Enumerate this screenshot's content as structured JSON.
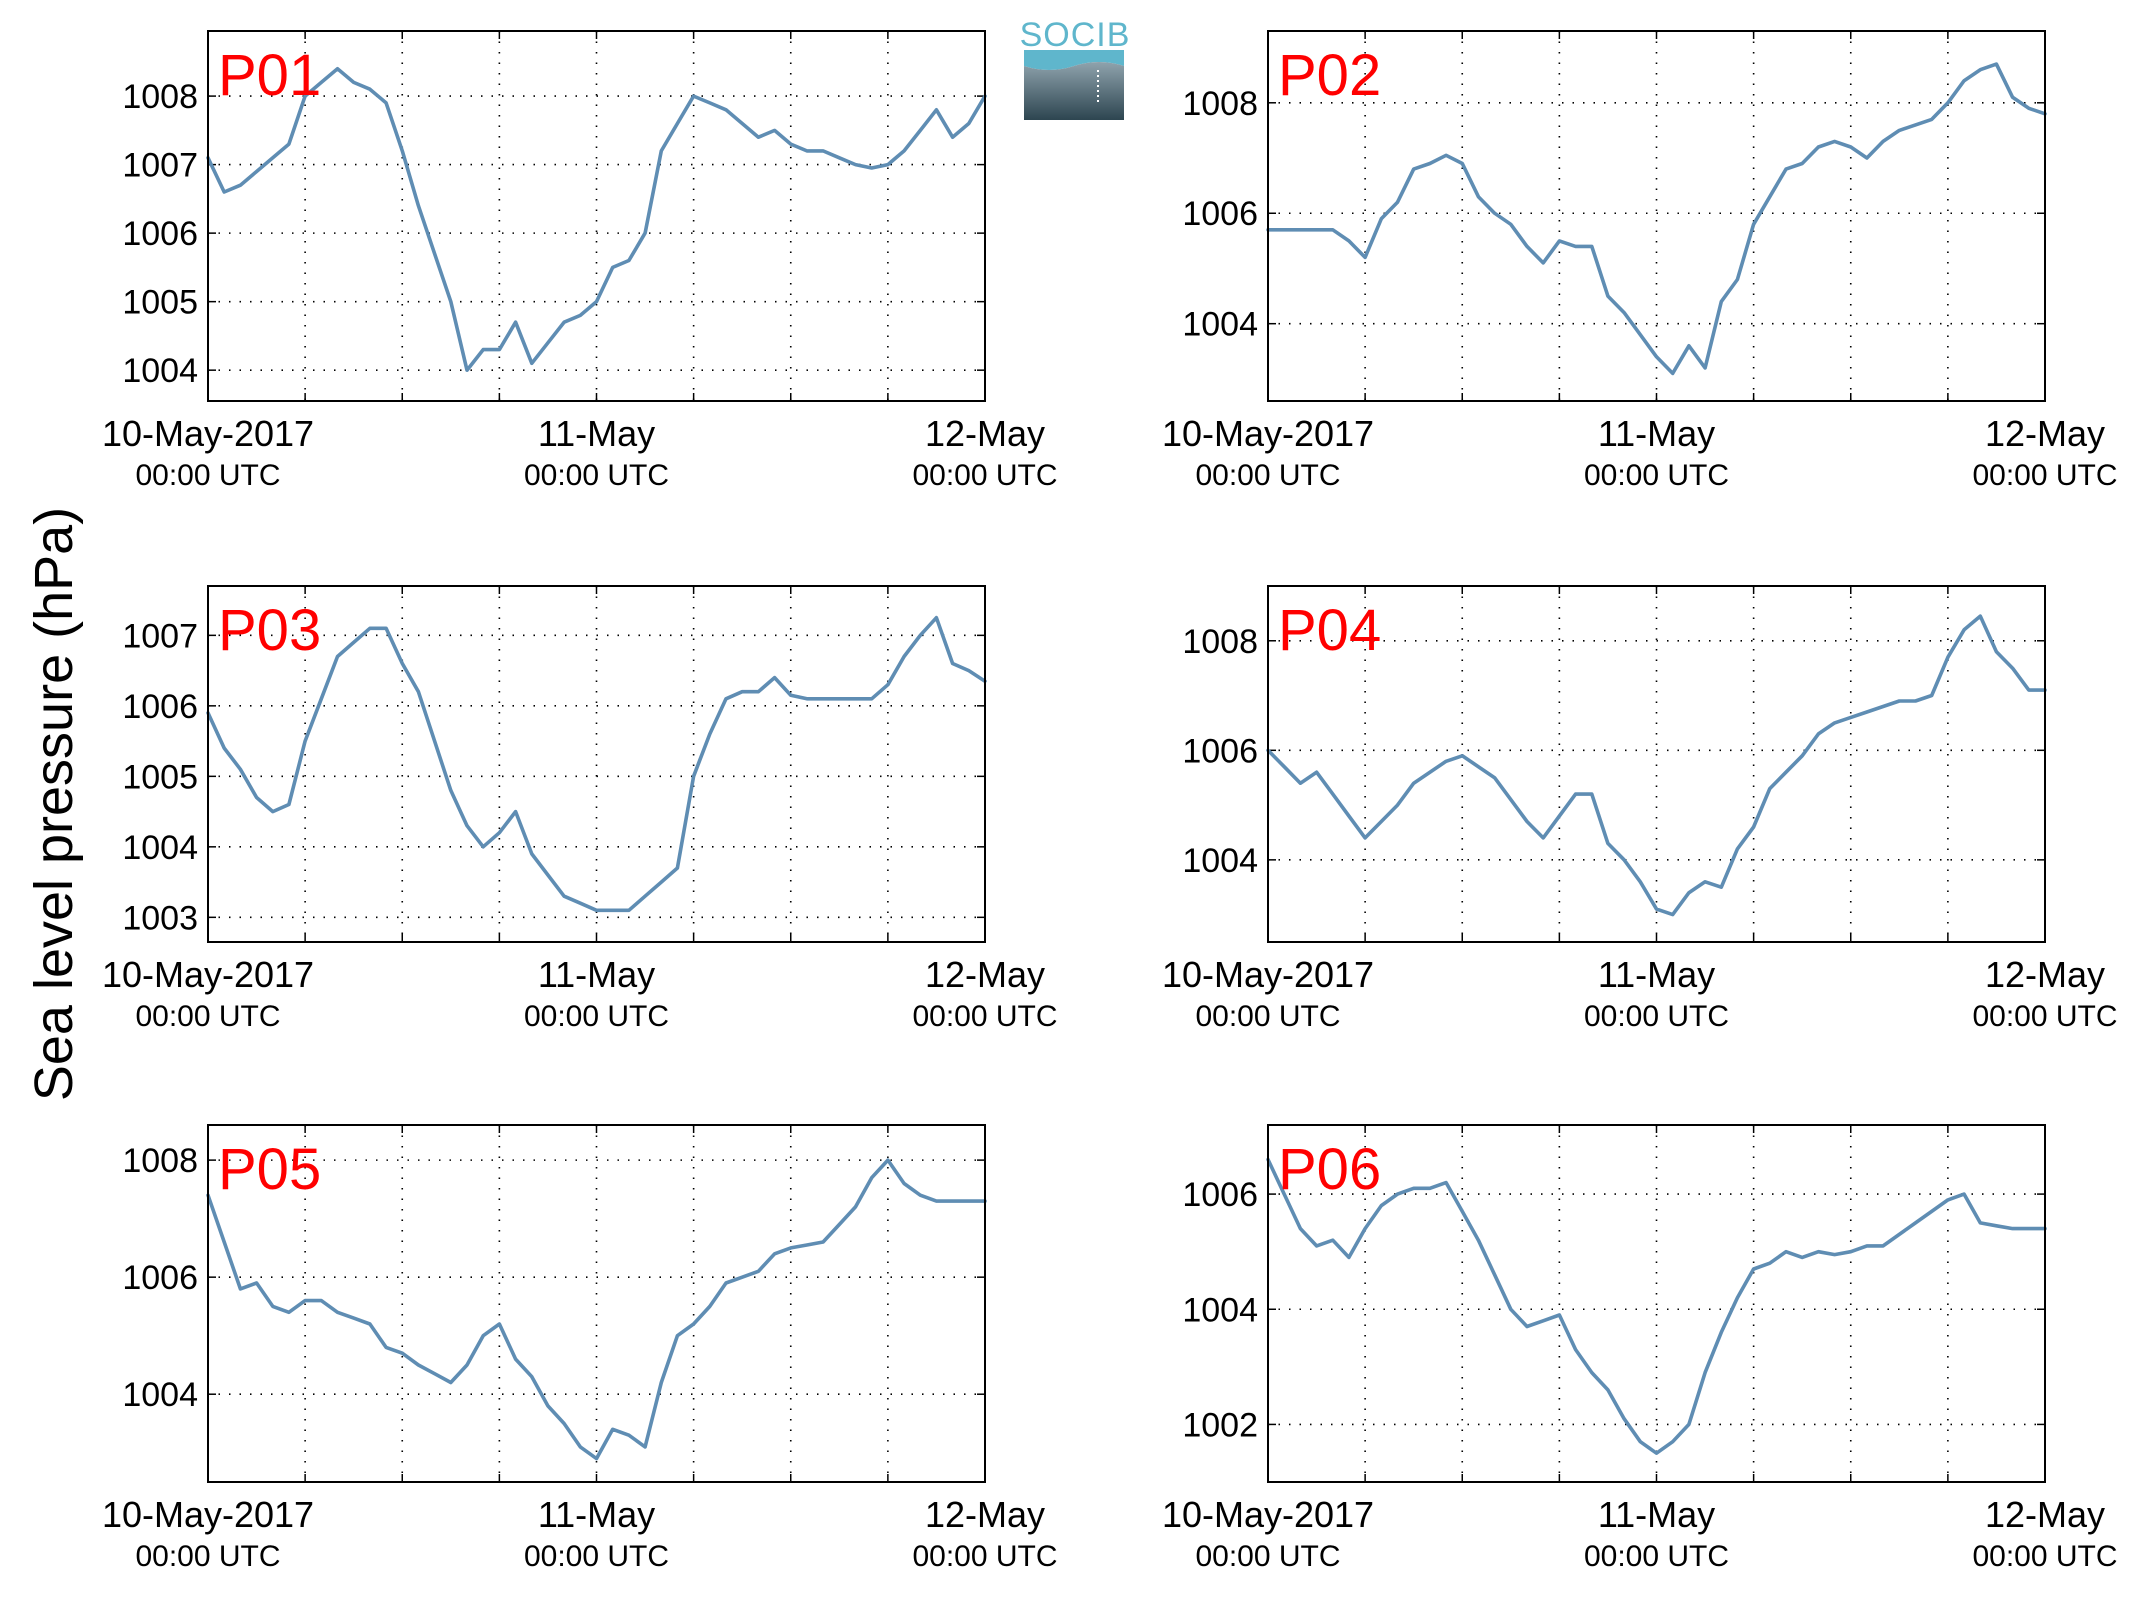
{
  "ylabel": "Sea level pressure (hPa)",
  "logo": {
    "text": "SOCIB"
  },
  "x_ticks": [
    {
      "date": "2017-05-10 00:00",
      "line1": "10-May-2017",
      "line2": "00:00 UTC"
    },
    {
      "date": "2017-05-11 00:00",
      "line1": "11-May",
      "line2": "00:00 UTC"
    },
    {
      "date": "2017-05-12 00:00",
      "line1": "12-May",
      "line2": "00:00 UTC"
    }
  ],
  "colors": {
    "line": "#5f8db3",
    "panel_label": "#ff0000",
    "logo": "#5fb6cc"
  },
  "chart_data": [
    {
      "type": "line",
      "name": "P01",
      "xlim": [
        "2017-05-10 00:00",
        "2017-05-12 00:00"
      ],
      "ylim": [
        1003.55,
        1008.95
      ],
      "yticks": [
        1004,
        1005,
        1006,
        1007,
        1008
      ],
      "grid": true,
      "x_hours": [
        0,
        1,
        2,
        3,
        4,
        5,
        6,
        7,
        8,
        9,
        10,
        11,
        12,
        13,
        14,
        15,
        16,
        17,
        18,
        19,
        20,
        21,
        22,
        23,
        24,
        25,
        26,
        27,
        28,
        29,
        30,
        31,
        32,
        33,
        34,
        35,
        36,
        37,
        38,
        39,
        40,
        41,
        42,
        43,
        44,
        45,
        46,
        47,
        48
      ],
      "values": [
        1007.1,
        1006.6,
        1006.7,
        1006.9,
        1007.1,
        1007.3,
        1008.0,
        1008.2,
        1008.4,
        1008.2,
        1008.1,
        1007.9,
        1007.2,
        1006.4,
        1005.7,
        1005.0,
        1004.0,
        1004.3,
        1004.3,
        1004.7,
        1004.1,
        1004.4,
        1004.7,
        1004.8,
        1005.0,
        1005.5,
        1005.6,
        1006.0,
        1007.2,
        1007.6,
        1008.0,
        1007.9,
        1007.8,
        1007.6,
        1007.4,
        1007.5,
        1007.3,
        1007.2,
        1007.2,
        1007.1,
        1007.0,
        1006.95,
        1007.0,
        1007.2,
        1007.5,
        1007.8,
        1007.4,
        1007.6,
        1008.0
      ]
    },
    {
      "type": "line",
      "name": "P02",
      "xlim": [
        "2017-05-10 00:00",
        "2017-05-12 00:00"
      ],
      "ylim": [
        1002.6,
        1009.3
      ],
      "yticks": [
        1004,
        1006,
        1008
      ],
      "grid": true,
      "x_hours": [
        0,
        1,
        2,
        3,
        4,
        5,
        6,
        7,
        8,
        9,
        10,
        11,
        12,
        13,
        14,
        15,
        16,
        17,
        18,
        19,
        20,
        21,
        22,
        23,
        24,
        25,
        26,
        27,
        28,
        29,
        30,
        31,
        32,
        33,
        34,
        35,
        36,
        37,
        38,
        39,
        40,
        41,
        42,
        43,
        44,
        45,
        46,
        47,
        48
      ],
      "values": [
        1005.7,
        1005.7,
        1005.7,
        1005.7,
        1005.7,
        1005.5,
        1005.2,
        1005.9,
        1006.2,
        1006.8,
        1006.9,
        1007.05,
        1006.9,
        1006.3,
        1006.0,
        1005.8,
        1005.4,
        1005.1,
        1005.5,
        1005.4,
        1005.4,
        1004.5,
        1004.2,
        1003.8,
        1003.4,
        1003.1,
        1003.6,
        1003.2,
        1004.4,
        1004.8,
        1005.8,
        1006.3,
        1006.8,
        1006.9,
        1007.2,
        1007.3,
        1007.2,
        1007.0,
        1007.3,
        1007.5,
        1007.6,
        1007.7,
        1008.0,
        1008.4,
        1008.6,
        1008.7,
        1008.1,
        1007.9,
        1007.8
      ]
    },
    {
      "type": "line",
      "name": "P03",
      "xlim": [
        "2017-05-10 00:00",
        "2017-05-12 00:00"
      ],
      "ylim": [
        1002.65,
        1007.7
      ],
      "yticks": [
        1003,
        1004,
        1005,
        1006,
        1007
      ],
      "grid": true,
      "x_hours": [
        0,
        1,
        2,
        3,
        4,
        5,
        6,
        7,
        8,
        9,
        10,
        11,
        12,
        13,
        14,
        15,
        16,
        17,
        18,
        19,
        20,
        21,
        22,
        23,
        24,
        25,
        26,
        27,
        28,
        29,
        30,
        31,
        32,
        33,
        34,
        35,
        36,
        37,
        38,
        39,
        40,
        41,
        42,
        43,
        44,
        45,
        46,
        47,
        48
      ],
      "values": [
        1005.9,
        1005.4,
        1005.1,
        1004.7,
        1004.5,
        1004.6,
        1005.5,
        1006.1,
        1006.7,
        1006.9,
        1007.1,
        1007.1,
        1006.6,
        1006.2,
        1005.5,
        1004.8,
        1004.3,
        1004.0,
        1004.2,
        1004.5,
        1003.9,
        1003.6,
        1003.3,
        1003.2,
        1003.1,
        1003.1,
        1003.1,
        1003.3,
        1003.5,
        1003.7,
        1005.0,
        1005.6,
        1006.1,
        1006.2,
        1006.2,
        1006.4,
        1006.15,
        1006.1,
        1006.1,
        1006.1,
        1006.1,
        1006.1,
        1006.3,
        1006.7,
        1007.0,
        1007.25,
        1006.6,
        1006.5,
        1006.35
      ]
    },
    {
      "type": "line",
      "name": "P04",
      "xlim": [
        "2017-05-10 00:00",
        "2017-05-12 00:00"
      ],
      "ylim": [
        1002.5,
        1009.0
      ],
      "yticks": [
        1004,
        1006,
        1008
      ],
      "grid": true,
      "x_hours": [
        0,
        1,
        2,
        3,
        4,
        5,
        6,
        7,
        8,
        9,
        10,
        11,
        12,
        13,
        14,
        15,
        16,
        17,
        18,
        19,
        20,
        21,
        22,
        23,
        24,
        25,
        26,
        27,
        28,
        29,
        30,
        31,
        32,
        33,
        34,
        35,
        36,
        37,
        38,
        39,
        40,
        41,
        42,
        43,
        44,
        45,
        46,
        47,
        48
      ],
      "values": [
        1006.0,
        1005.7,
        1005.4,
        1005.6,
        1005.2,
        1004.8,
        1004.4,
        1004.7,
        1005.0,
        1005.4,
        1005.6,
        1005.8,
        1005.9,
        1005.7,
        1005.5,
        1005.1,
        1004.7,
        1004.4,
        1004.8,
        1005.2,
        1005.2,
        1004.3,
        1004.0,
        1003.6,
        1003.1,
        1003.0,
        1003.4,
        1003.6,
        1003.5,
        1004.2,
        1004.6,
        1005.3,
        1005.6,
        1005.9,
        1006.3,
        1006.5,
        1006.6,
        1006.7,
        1006.8,
        1006.9,
        1006.9,
        1007.0,
        1007.7,
        1008.2,
        1008.45,
        1007.8,
        1007.5,
        1007.1,
        1007.1
      ]
    },
    {
      "type": "line",
      "name": "P05",
      "xlim": [
        "2017-05-10 00:00",
        "2017-05-12 00:00"
      ],
      "ylim": [
        1002.5,
        1008.6
      ],
      "yticks": [
        1004,
        1006,
        1008
      ],
      "grid": true,
      "x_hours": [
        0,
        1,
        2,
        3,
        4,
        5,
        6,
        7,
        8,
        9,
        10,
        11,
        12,
        13,
        14,
        15,
        16,
        17,
        18,
        19,
        20,
        21,
        22,
        23,
        24,
        25,
        26,
        27,
        28,
        29,
        30,
        31,
        32,
        33,
        34,
        35,
        36,
        37,
        38,
        39,
        40,
        41,
        42,
        43,
        44,
        45,
        46,
        47,
        48
      ],
      "values": [
        1007.4,
        1006.6,
        1005.8,
        1005.9,
        1005.5,
        1005.4,
        1005.6,
        1005.6,
        1005.4,
        1005.3,
        1005.2,
        1004.8,
        1004.7,
        1004.5,
        1004.35,
        1004.2,
        1004.5,
        1005.0,
        1005.2,
        1004.6,
        1004.3,
        1003.8,
        1003.5,
        1003.1,
        1002.9,
        1003.4,
        1003.3,
        1003.1,
        1004.2,
        1005.0,
        1005.2,
        1005.5,
        1005.9,
        1006.0,
        1006.1,
        1006.4,
        1006.5,
        1006.55,
        1006.6,
        1006.9,
        1007.2,
        1007.7,
        1008.0,
        1007.6,
        1007.4,
        1007.3,
        1007.3,
        1007.3,
        1007.3
      ]
    },
    {
      "type": "line",
      "name": "P06",
      "xlim": [
        "2017-05-10 00:00",
        "2017-05-12 00:00"
      ],
      "ylim": [
        1001.0,
        1007.2
      ],
      "yticks": [
        1002,
        1004,
        1006
      ],
      "grid": true,
      "x_hours": [
        0,
        1,
        2,
        3,
        4,
        5,
        6,
        7,
        8,
        9,
        10,
        11,
        12,
        13,
        14,
        15,
        16,
        17,
        18,
        19,
        20,
        21,
        22,
        23,
        24,
        25,
        26,
        27,
        28,
        29,
        30,
        31,
        32,
        33,
        34,
        35,
        36,
        37,
        38,
        39,
        40,
        41,
        42,
        43,
        44,
        45,
        46,
        47,
        48
      ],
      "values": [
        1006.6,
        1006.0,
        1005.4,
        1005.1,
        1005.2,
        1004.9,
        1005.4,
        1005.8,
        1006.0,
        1006.1,
        1006.1,
        1006.2,
        1005.7,
        1005.2,
        1004.6,
        1004.0,
        1003.7,
        1003.8,
        1003.9,
        1003.3,
        1002.9,
        1002.6,
        1002.1,
        1001.7,
        1001.5,
        1001.7,
        1002.0,
        1002.9,
        1003.6,
        1004.2,
        1004.7,
        1004.8,
        1005.0,
        1004.9,
        1005.0,
        1004.95,
        1005.0,
        1005.1,
        1005.1,
        1005.3,
        1005.5,
        1005.7,
        1005.9,
        1006.0,
        1005.5,
        1005.45,
        1005.4,
        1005.4,
        1005.4
      ]
    }
  ]
}
